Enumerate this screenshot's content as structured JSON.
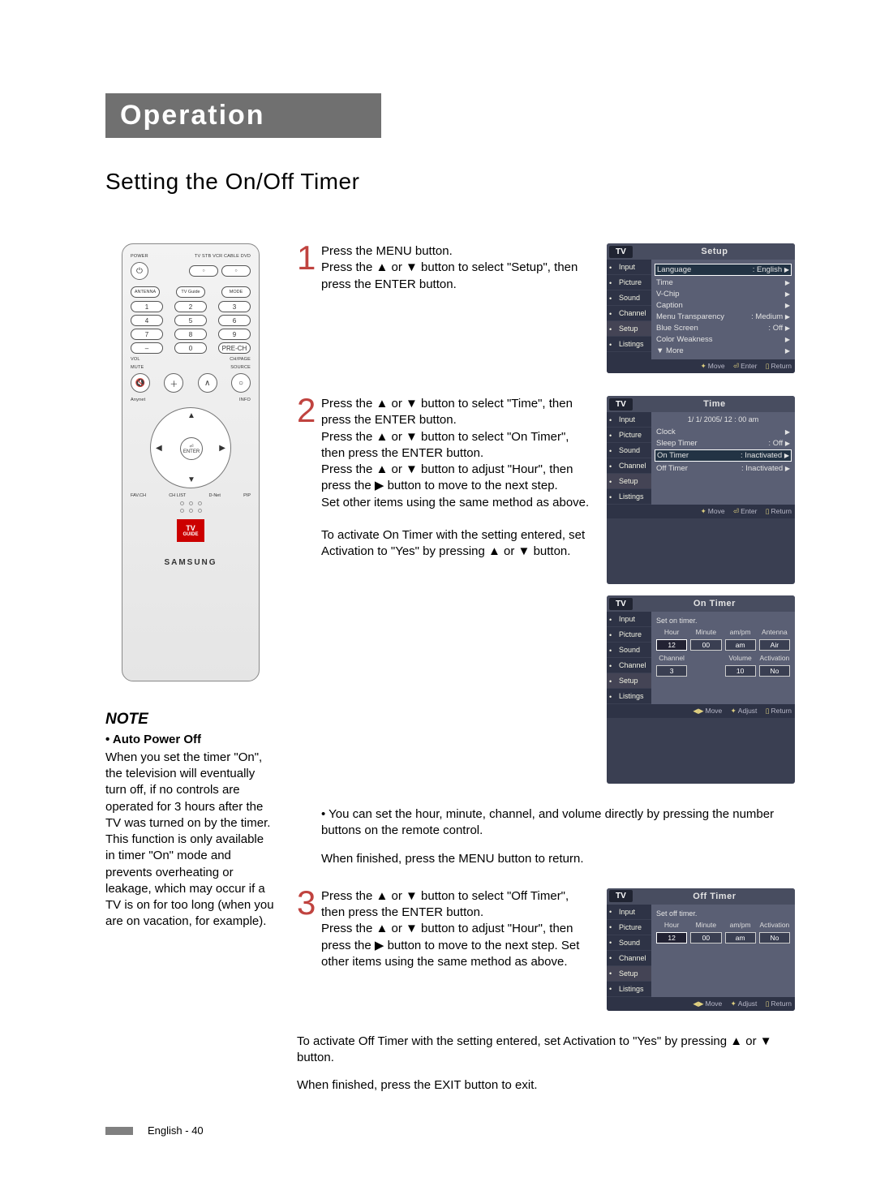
{
  "header": {
    "title": "Operation"
  },
  "subtitle": "Setting the On/Off Timer",
  "remote": {
    "power_label": "POWER",
    "top_labels": "TV  STB  VCR  CABLE  DVD",
    "row2": [
      "ANTENNA",
      "TV Guide",
      "MODE"
    ],
    "nums": [
      [
        "1",
        "2",
        "3"
      ],
      [
        "4",
        "5",
        "6"
      ],
      [
        "7",
        "8",
        "9"
      ],
      [
        "–",
        "0",
        "PRE-CH"
      ]
    ],
    "vol_label": "VOL",
    "ch_label": "CH/PAGE",
    "mute": "MUTE",
    "source": "SOURCE",
    "anynet": "Anynet",
    "info": "INFO",
    "enter": "ENTER",
    "bottom_row": [
      "FAV.CH",
      "CH LIST",
      "D-Net",
      "PIP"
    ],
    "tvguide_top": "TV",
    "tvguide_bot": "GUIDE",
    "brand": "SAMSUNG"
  },
  "note": {
    "heading": "NOTE",
    "subheading": "• Auto Power Off",
    "body": "When you set the timer \"On\", the television will eventually turn off, if no controls are operated for 3 hours after the TV was turned on by the timer. This function is only available in timer \"On\" mode and prevents overheating or leakage, which may occur if a TV is on for too long (when you are on vacation, for example)."
  },
  "steps": {
    "s1": {
      "num": "1",
      "text": "Press the MENU button.\nPress the ▲ or ▼ button to select \"Setup\", then press the ENTER button."
    },
    "s2": {
      "num": "2",
      "text": "Press the ▲ or ▼ button to select \"Time\", then press the ENTER button.\nPress the ▲ or ▼ button to select \"On Timer\", then press the ENTER button.\nPress the ▲ or ▼ button to adjust \"Hour\", then press the ▶ button to move to the next step.\nSet other items using the same method as above.\n\nTo activate On Timer with the setting entered, set Activation to \"Yes\" by pressing ▲ or ▼ button.",
      "bullet": "• You can set the hour, minute, channel, and volume directly by pressing the number buttons on the remote control.",
      "after": "When finished, press the MENU button to return."
    },
    "s3": {
      "num": "3",
      "text": "Press the ▲ or ▼ button to select \"Off Timer\", then press the ENTER button.\nPress the ▲ or ▼ button to adjust \"Hour\", then press the ▶ button to move to the next step. Set other items using the same method as above.",
      "after1": "To activate Off Timer with the setting entered, set Activation to \"Yes\" by pressing ▲ or ▼ button.",
      "after2": "When finished, press the EXIT button to exit."
    }
  },
  "osd_common": {
    "tv_label": "TV",
    "side": [
      "Input",
      "Picture",
      "Sound",
      "Channel",
      "Setup",
      "Listings"
    ],
    "foot_move": "Move",
    "foot_enter": "Enter",
    "foot_return": "Return",
    "foot_adjust": "Adjust"
  },
  "osd_setup": {
    "title": "Setup",
    "rows": [
      {
        "l": "Language",
        "r": ": English"
      },
      {
        "l": "Time",
        "r": ""
      },
      {
        "l": "V-Chip",
        "r": ""
      },
      {
        "l": "Caption",
        "r": ""
      },
      {
        "l": "Menu Transparency",
        "r": ": Medium"
      },
      {
        "l": "Blue Screen",
        "r": ": Off"
      },
      {
        "l": "Color Weakness",
        "r": ""
      },
      {
        "l": "▼ More",
        "r": ""
      }
    ]
  },
  "osd_time": {
    "title": "Time",
    "clock": "1/ 1/ 2005/ 12 : 00 am",
    "rows": [
      {
        "l": "Clock",
        "r": ""
      },
      {
        "l": "Sleep Timer",
        "r": ": Off"
      },
      {
        "l": "On Timer",
        "r": ": Inactivated",
        "hl": true
      },
      {
        "l": "Off Timer",
        "r": ": Inactivated"
      }
    ]
  },
  "osd_on": {
    "title": "On Timer",
    "subtitle": "Set on timer.",
    "grid_h1": [
      "Hour",
      "Minute",
      "am/pm",
      "Antenna"
    ],
    "grid_v1": [
      "12",
      "00",
      "am",
      "Air"
    ],
    "grid_h2": [
      "Channel",
      "",
      "Volume",
      "Activation"
    ],
    "grid_v2": [
      "3",
      "",
      "10",
      "No"
    ]
  },
  "osd_off": {
    "title": "Off Timer",
    "subtitle": "Set off timer.",
    "grid_h": [
      "Hour",
      "Minute",
      "am/pm",
      "Activation"
    ],
    "grid_v": [
      "12",
      "00",
      "am",
      "No"
    ]
  },
  "footer": {
    "text": "English - 40"
  },
  "colors": {
    "header_bg": "#707070",
    "step_num": "#c0433f",
    "osd_bg": "#3a3f52",
    "osd_side": "#2e3346",
    "osd_main": "#5a5f74"
  }
}
